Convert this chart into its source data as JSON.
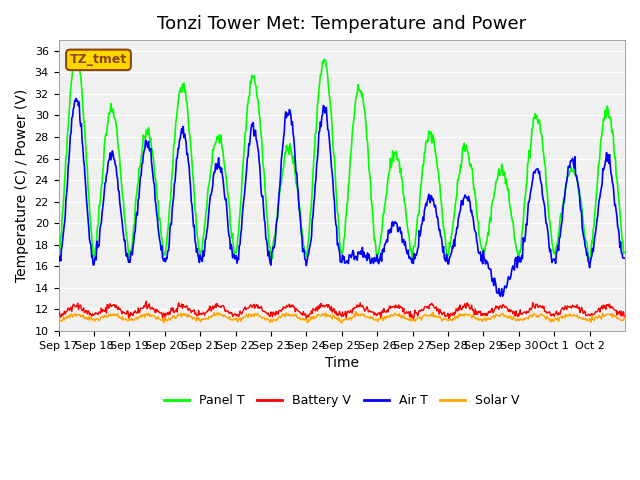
{
  "title": "Tonzi Tower Met: Temperature and Power",
  "xlabel": "Time",
  "ylabel": "Temperature (C) / Power (V)",
  "ylim": [
    10,
    37
  ],
  "yticks": [
    10,
    12,
    14,
    16,
    18,
    20,
    22,
    24,
    26,
    28,
    30,
    32,
    34,
    36
  ],
  "x_labels": [
    "Sep 17",
    "Sep 18",
    "Sep 19",
    "Sep 20",
    "Sep 21",
    "Sep 22",
    "Sep 23",
    "Sep 24",
    "Sep 25",
    "Sep 26",
    "Sep 27",
    "Sep 28",
    "Sep 29",
    "Sep 30",
    "Oct 1",
    "Oct 2"
  ],
  "x_tick_positions": [
    0,
    1,
    2,
    3,
    4,
    5,
    6,
    7,
    8,
    9,
    10,
    11,
    12,
    13,
    14,
    15
  ],
  "panel_t_color": "#00FF00",
  "battery_v_color": "#FF0000",
  "air_t_color": "#0000FF",
  "solar_v_color": "#FFA500",
  "plot_bg_color": "#F0F0F0",
  "legend_label_box": "TZ_tmet",
  "legend_box_color": "#FFD700",
  "legend_box_border": "#8B4513",
  "title_fontsize": 13,
  "axis_label_fontsize": 10,
  "tick_fontsize": 8,
  "panel_peaks": [
    35.5,
    30.5,
    28.5,
    33.0,
    28.0,
    33.5,
    27.0,
    35.0,
    32.5,
    26.5,
    28.5,
    27.0,
    25.0,
    30.0,
    25.0,
    30.5
  ],
  "air_peaks": [
    31.5,
    26.5,
    27.5,
    28.5,
    25.5,
    29.0,
    30.5,
    30.5,
    17.0,
    20.0,
    22.5,
    22.5,
    13.5,
    25.0,
    26.0,
    26.0
  ],
  "trough_base": 17.0,
  "air_trough": 16.5,
  "n_days": 16,
  "pts_per_day": 48
}
